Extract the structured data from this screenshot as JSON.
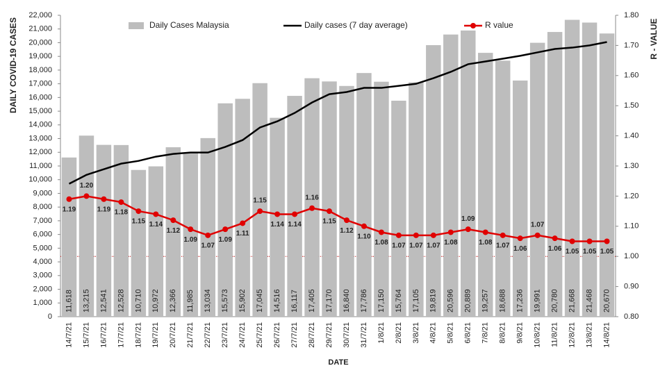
{
  "chart_data": {
    "type": "bar",
    "categories": [
      "14/7/21",
      "15/7/21",
      "16/7/21",
      "17/7/21",
      "18/7/21",
      "19/7/21",
      "20/7/21",
      "21/7/21",
      "22/7/21",
      "23/7/21",
      "24/7/21",
      "25/7/21",
      "26/7/21",
      "27/7/21",
      "28/7/21",
      "29/7/21",
      "30/7/21",
      "31/7/21",
      "1/8/21",
      "2/8/21",
      "3/8/21",
      "4/8/21",
      "5/8/21",
      "6/8/21",
      "7/8/21",
      "8/8/21",
      "9/8/21",
      "10/8/21",
      "11/8/21",
      "12/8/21",
      "13/8/21",
      "14/8/21"
    ],
    "series": [
      {
        "name": "Daily Cases Malaysia",
        "type": "bar",
        "color": "#bdbdbd",
        "values": [
          11618,
          13215,
          12541,
          12528,
          10710,
          10972,
          12366,
          11985,
          13034,
          15573,
          15902,
          17045,
          14516,
          16117,
          17405,
          17170,
          16840,
          17786,
          17150,
          15764,
          17105,
          19819,
          20596,
          20889,
          19257,
          18688,
          17236,
          19991,
          20780,
          21668,
          21468,
          20670
        ],
        "value_labels": [
          "11,618",
          "13,215",
          "12,541",
          "12,528",
          "10,710",
          "10,972",
          "12,366",
          "11,985",
          "13,034",
          "15,573",
          "15,902",
          "17,045",
          "14,516",
          "16,117",
          "17,405",
          "17,170",
          "16,840",
          "17,786",
          "17,150",
          "15,764",
          "17,105",
          "19,819",
          "20,596",
          "20,889",
          "19,257",
          "18,688",
          "17,236",
          "19,991",
          "20,780",
          "21,668",
          "21,468",
          "20,670"
        ]
      },
      {
        "name": "Daily cases (7 day average)",
        "type": "line",
        "color": "#000000",
        "values": [
          9700,
          10350,
          10760,
          11170,
          11370,
          11680,
          11880,
          11980,
          11980,
          12390,
          12890,
          13810,
          14260,
          14870,
          15630,
          16240,
          16400,
          16700,
          16700,
          16850,
          17000,
          17410,
          17870,
          18430,
          18630,
          18830,
          19040,
          19290,
          19540,
          19640,
          19800,
          20050
        ]
      },
      {
        "name": "R value",
        "type": "line",
        "axis": "y2",
        "color": "#e00000",
        "values": [
          1.19,
          1.2,
          1.19,
          1.18,
          1.15,
          1.14,
          1.12,
          1.09,
          1.07,
          1.09,
          1.11,
          1.15,
          1.14,
          1.14,
          1.16,
          1.15,
          1.12,
          1.1,
          1.08,
          1.07,
          1.07,
          1.07,
          1.08,
          1.09,
          1.08,
          1.07,
          1.06,
          1.07,
          1.06,
          1.05,
          1.05,
          1.05
        ],
        "value_labels": [
          "1.19",
          "1.20",
          "1.19",
          "1.18",
          "1.15",
          "1.14",
          "1.12",
          "1.09",
          "1.07",
          "1.09",
          "1.11",
          "1.15",
          "1.14",
          "1.14",
          "1.16",
          "1.15",
          "1.12",
          "1.10",
          "1.08",
          "1.07",
          "1.07",
          "1.07",
          "1.08",
          "1.09",
          "1.08",
          "1.07",
          "1.06",
          "1.07",
          "1.06",
          "1.05",
          "1.05",
          "1.05"
        ]
      }
    ],
    "threshold": 1,
    "y_label": "DAILY COVID-19 CASES",
    "y2_label": "R - VALUE",
    "x_label": "DATE",
    "ylim": [
      0,
      22000
    ],
    "yticks": [
      0,
      {
        "value": 1000,
        "label": "1,000"
      },
      {
        "value": 2000,
        "label": "2,000"
      },
      {
        "value": 3000,
        "label": "3,000"
      },
      {
        "value": 4000,
        "label": "4,000"
      },
      {
        "value": 5000,
        "label": "5,000"
      },
      {
        "value": 6000,
        "label": "6,000"
      },
      {
        "value": 7000,
        "label": "7,000"
      },
      {
        "value": 8000,
        "label": "8,000"
      },
      {
        "value": 9000,
        "label": "9,000"
      },
      {
        "value": 10000,
        "label": "10,000"
      },
      {
        "value": 11000,
        "label": "11,000"
      },
      {
        "value": 12000,
        "label": "12,000"
      },
      {
        "value": 13000,
        "label": "13,000"
      },
      {
        "value": 14000,
        "label": "14,000"
      },
      {
        "value": 15000,
        "label": "15,000"
      },
      {
        "value": 16000,
        "label": "16,000"
      },
      {
        "value": 17000,
        "label": "17,000"
      },
      {
        "value": 18000,
        "label": "18,000"
      },
      {
        "value": 19000,
        "label": "19,000"
      },
      {
        "value": 20000,
        "label": "20,000"
      },
      {
        "value": 21000,
        "label": "21,000"
      },
      {
        "value": 22000,
        "label": "22,000"
      }
    ],
    "y2lim": [
      0.8,
      1.8
    ],
    "y2ticks": [
      {
        "value": 0.8,
        "label": "0.80"
      },
      {
        "value": 0.9,
        "label": "0.90"
      },
      {
        "value": 1,
        "label": "1.00"
      },
      {
        "value": 1.1,
        "label": "1.10"
      },
      {
        "value": 1.2,
        "label": "1.20"
      },
      {
        "value": 1.3,
        "label": "1.30"
      },
      {
        "value": 1.4,
        "label": "1.40"
      },
      {
        "value": 1.5,
        "label": "1.50"
      },
      {
        "value": 1.6,
        "label": "1.60"
      },
      {
        "value": 1.7,
        "label": "1.70"
      },
      {
        "value": 1.8,
        "label": "1.80"
      }
    ],
    "grid": false,
    "legend": "top"
  }
}
